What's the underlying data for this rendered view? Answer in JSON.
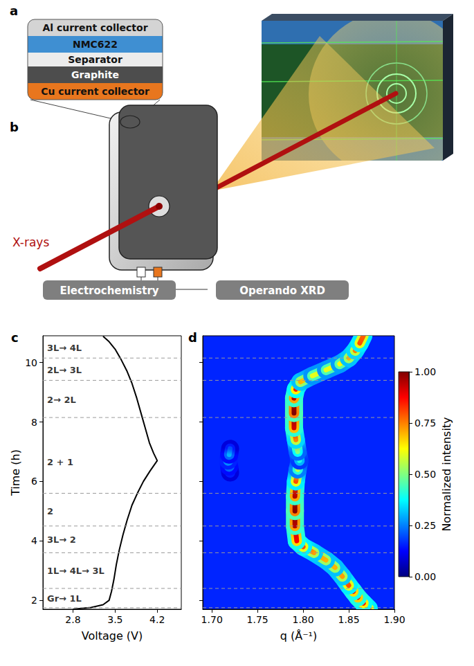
{
  "diagram": {
    "panel_a": {
      "label": "a",
      "layers": [
        "Al current collector",
        "NMC622",
        "Separator",
        "Graphite",
        "Cu current collector"
      ]
    },
    "panel_b": {
      "label": "b",
      "beam": "X-rays",
      "boxes": [
        "Electrochemistry",
        "Operando XRD"
      ]
    }
  },
  "chart_data": [
    {
      "type": "line",
      "panel_label": "c",
      "x_label": "Voltage (V)",
      "y_label": "Time (h)",
      "xlim": [
        2.3,
        4.6
      ],
      "xticks": [
        2.8,
        3.5,
        4.2
      ],
      "ylim": [
        1.7,
        10.9
      ],
      "yticks": [
        2,
        4,
        6,
        8,
        10
      ],
      "grid": false,
      "series": [
        {
          "color": "#000000",
          "values": [
            [
              2.8,
              1.7
            ],
            [
              3.1,
              1.76
            ],
            [
              3.3,
              1.85
            ],
            [
              3.4,
              2.0
            ],
            [
              3.44,
              2.3
            ],
            [
              3.48,
              2.7
            ],
            [
              3.52,
              3.2
            ],
            [
              3.57,
              3.7
            ],
            [
              3.63,
              4.2
            ],
            [
              3.7,
              4.7
            ],
            [
              3.78,
              5.2
            ],
            [
              3.87,
              5.6
            ],
            [
              3.97,
              6.0
            ],
            [
              4.08,
              6.35
            ],
            [
              4.2,
              6.7
            ],
            [
              4.14,
              6.95
            ],
            [
              4.07,
              7.3
            ],
            [
              4.0,
              7.8
            ],
            [
              3.93,
              8.3
            ],
            [
              3.86,
              8.8
            ],
            [
              3.78,
              9.3
            ],
            [
              3.7,
              9.7
            ],
            [
              3.6,
              10.1
            ],
            [
              3.5,
              10.45
            ],
            [
              3.4,
              10.7
            ],
            [
              3.3,
              10.88
            ]
          ]
        }
      ],
      "boundaries": [
        1.75,
        2.4,
        3.6,
        4.5,
        5.6,
        8.15,
        9.4,
        10.15
      ],
      "stage_labels": [
        {
          "text": "Gr→ 1L",
          "time": 2.05
        },
        {
          "text": "1L→ 4L→ 3L",
          "time": 3.0
        },
        {
          "text": "3L→ 2",
          "time": 4.05
        },
        {
          "text": "2",
          "time": 5.0
        },
        {
          "text": "2 + 1",
          "time": 6.65
        },
        {
          "text": "2→ 2L",
          "time": 8.75
        },
        {
          "text": "2L→ 3L",
          "time": 9.75
        },
        {
          "text": "3L→ 4L",
          "time": 10.5
        }
      ]
    },
    {
      "type": "heatmap",
      "panel_label": "d",
      "x_label": "q (Å⁻¹)",
      "xlim": [
        1.69,
        1.9
      ],
      "xticks": [
        {
          "value": 1.7,
          "label": "1.70"
        },
        1.75,
        {
          "value": 1.8,
          "label": "1.80"
        },
        1.85,
        {
          "value": 1.9,
          "label": "1.90"
        }
      ],
      "ylim": [
        1.7,
        10.9
      ],
      "yticks": [
        2,
        4,
        6,
        8,
        10
      ],
      "tick_labels": "x",
      "grid": false,
      "boundaries": [
        1.75,
        2.4,
        3.6,
        4.5,
        5.6,
        8.15,
        9.4,
        10.15
      ],
      "series": [
        {
          "values": [
            [
              1.872,
              1.72,
              0.8
            ],
            [
              1.866,
              1.9,
              0.85
            ],
            [
              1.86,
              2.1,
              0.9
            ],
            [
              1.855,
              2.3,
              0.88
            ],
            [
              1.85,
              2.5,
              0.8
            ],
            [
              1.843,
              2.8,
              0.72
            ],
            [
              1.835,
              3.1,
              0.7
            ],
            [
              1.825,
              3.35,
              0.7
            ],
            [
              1.812,
              3.6,
              0.72
            ],
            [
              1.8,
              3.8,
              0.8
            ],
            [
              1.793,
              4.0,
              0.88
            ],
            [
              1.791,
              4.5,
              0.95
            ],
            [
              1.791,
              5.0,
              1.0
            ],
            [
              1.791,
              5.5,
              0.95
            ],
            [
              1.792,
              6.0,
              0.8
            ],
            [
              1.794,
              6.4,
              0.55
            ],
            [
              1.796,
              6.7,
              0.4
            ],
            [
              1.794,
              7.0,
              0.5
            ],
            [
              1.792,
              7.4,
              0.75
            ],
            [
              1.79,
              7.8,
              0.92
            ],
            [
              1.79,
              8.3,
              1.0
            ],
            [
              1.79,
              8.8,
              0.95
            ],
            [
              1.792,
              9.1,
              0.85
            ],
            [
              1.797,
              9.35,
              0.7
            ],
            [
              1.81,
              9.55,
              0.6
            ],
            [
              1.825,
              9.75,
              0.6
            ],
            [
              1.84,
              9.95,
              0.62
            ],
            [
              1.85,
              10.15,
              0.7
            ],
            [
              1.857,
              10.4,
              0.75
            ],
            [
              1.862,
              10.65,
              0.8
            ],
            [
              1.866,
              10.9,
              0.78
            ]
          ]
        },
        {
          "values": [
            [
              1.72,
              6.3,
              0.2
            ],
            [
              1.719,
              6.5,
              0.3
            ],
            [
              1.718,
              6.7,
              0.35
            ],
            [
              1.719,
              6.9,
              0.3
            ],
            [
              1.72,
              7.1,
              0.2
            ]
          ]
        }
      ],
      "colorbar": {
        "label": "Normalized intensity",
        "range": [
          0,
          1
        ],
        "ticks": [
          {
            "value": 0,
            "label": "0.00"
          },
          0.25,
          {
            "value": 0.5,
            "label": "0.50"
          },
          0.75,
          {
            "value": 1,
            "label": "1.00"
          }
        ]
      }
    }
  ]
}
